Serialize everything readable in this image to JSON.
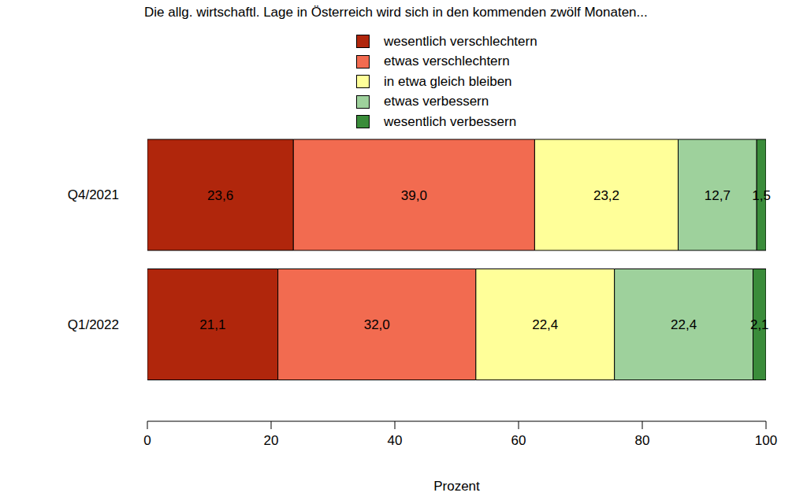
{
  "chart_data": {
    "type": "bar",
    "orientation": "horizontal",
    "stacked": true,
    "data_labels": true,
    "legend": "top",
    "title": "Die allg. wirtschaftl. Lage in Österreich wird sich in den kommenden zwölf Monaten...",
    "xlabel": "Prozent",
    "categories": [
      "Q4/2021",
      "Q1/2022"
    ],
    "xlim": [
      0,
      100
    ],
    "xticks": [
      0,
      20,
      40,
      60,
      80,
      100
    ],
    "series": [
      {
        "name": "wesentlich verschlechtern",
        "color": "#B0260C",
        "values": [
          23.6,
          21.1
        ],
        "value_labels": [
          "23,6",
          "21,1"
        ]
      },
      {
        "name": "etwas verschlechtern",
        "color": "#F26B50",
        "values": [
          39.0,
          32.0
        ],
        "value_labels": [
          "39,0",
          "32,0"
        ]
      },
      {
        "name": "in etwa gleich bleiben",
        "color": "#FFFF99",
        "values": [
          23.2,
          22.4
        ],
        "value_labels": [
          "23,2",
          "22,4"
        ]
      },
      {
        "name": "etwas verbessern",
        "color": "#9ED19C",
        "values": [
          12.7,
          22.4
        ],
        "value_labels": [
          "12,7",
          "22,4"
        ]
      },
      {
        "name": "wesentlich verbessern",
        "color": "#3A8C3A",
        "values": [
          1.5,
          2.1
        ],
        "value_labels": [
          "1,5",
          "2,1"
        ]
      }
    ]
  }
}
